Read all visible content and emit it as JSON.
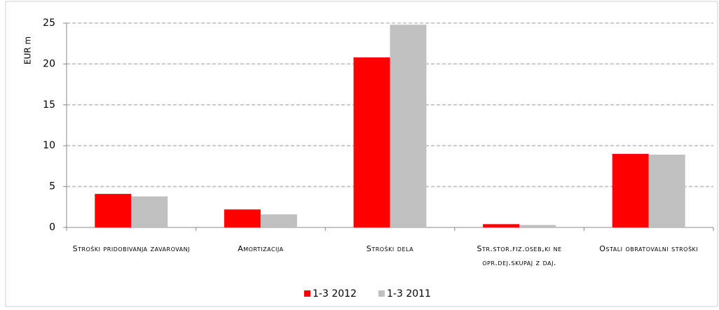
{
  "chart_data": {
    "type": "bar",
    "y_label": "EUR m",
    "categories": [
      "Stroški pridobivanja zavarovanj",
      "Amortizacija",
      "Stroški dela",
      "Str.stor.fiz.oseb,ki ne opr.dej.skupaj z daj.",
      "Ostali obratovalni stroški"
    ],
    "series": [
      {
        "name": "1-3 2012",
        "color": "#ff0000",
        "values": [
          4.1,
          2.2,
          20.8,
          0.4,
          9.0
        ]
      },
      {
        "name": "1-3 2011",
        "color": "#c0c0c0",
        "values": [
          3.8,
          1.6,
          24.8,
          0.3,
          8.9
        ]
      }
    ],
    "ylim": [
      0,
      25
    ],
    "yticks": [
      0,
      5,
      10,
      15,
      20,
      25
    ],
    "grid": true,
    "legend": "bottom"
  }
}
